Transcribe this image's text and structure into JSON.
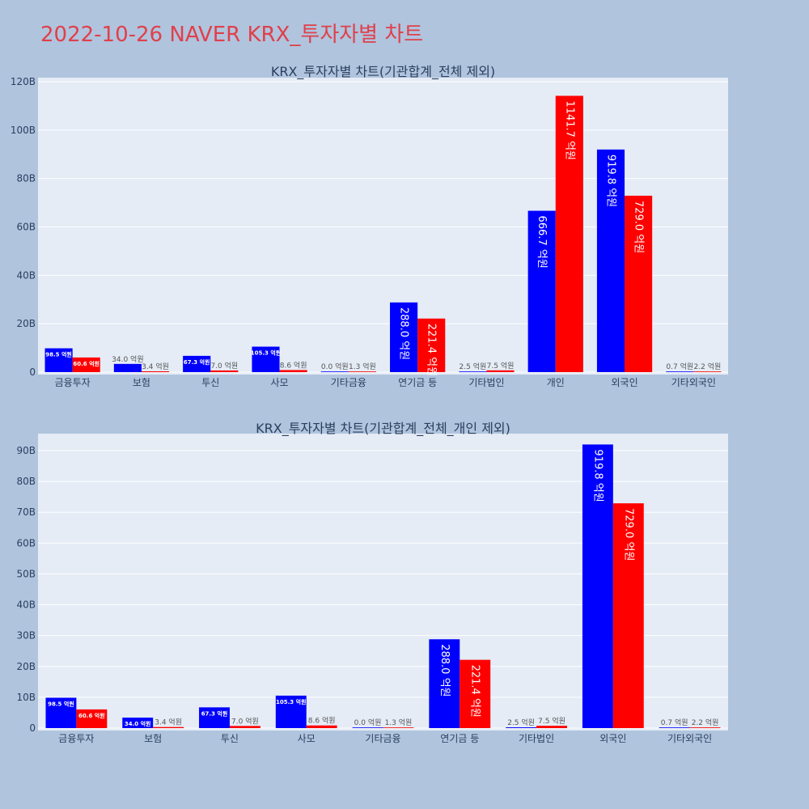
{
  "title": "2022-10-26 NAVER KRX_투자자별 차트",
  "colors": {
    "buy": "#0000ff",
    "sell": "#ff0000",
    "title": "#e0404a"
  },
  "chart_data": [
    {
      "type": "bar",
      "title": "KRX_투자자별 차트(기관합계_전체 제외)",
      "categories": [
        "금융투자",
        "보험",
        "투신",
        "사모",
        "기타금융",
        "연기금 등",
        "기타법인",
        "개인",
        "외국인",
        "기타외국인"
      ],
      "series": [
        {
          "values": [
            9.85,
            3.4,
            6.73,
            10.53,
            0.0,
            28.8,
            0.25,
            66.67,
            91.98,
            0.07
          ],
          "labels": [
            "98.5 억원",
            "34.0 억원",
            "67.3 억원",
            "105.3 억원",
            "0.0 억원",
            "288.0 억원",
            "2.5 억원",
            "666.7 억원",
            "919.8 억원",
            "0.7 억원"
          ]
        },
        {
          "values": [
            6.06,
            0.34,
            0.7,
            0.86,
            0.13,
            22.14,
            0.75,
            114.17,
            72.9,
            0.22
          ],
          "labels": [
            "60.6 억원",
            "3.4 억원",
            "7.0 억원",
            "8.6 억원",
            "1.3 억원",
            "221.4 억원",
            "7.5 억원",
            "1141.7 억원",
            "729.0 억원",
            "2.2 억원"
          ]
        }
      ],
      "ylim": [
        0,
        120
      ],
      "yticks": [
        0,
        20,
        40,
        60,
        80,
        100,
        120
      ],
      "ytick_labels": [
        "0",
        "20B",
        "40B",
        "60B",
        "80B",
        "100B",
        "120B"
      ],
      "grid": true
    },
    {
      "type": "bar",
      "title": "KRX_투자자별 차트(기관합계_전체_개인 제외)",
      "categories": [
        "금융투자",
        "보험",
        "투신",
        "사모",
        "기타금융",
        "연기금 등",
        "기타법인",
        "외국인",
        "기타외국인"
      ],
      "series": [
        {
          "values": [
            9.85,
            3.4,
            6.73,
            10.53,
            0.0,
            28.8,
            0.25,
            91.98,
            0.07
          ],
          "labels": [
            "98.5 억원",
            "34.0 억원",
            "67.3 억원",
            "105.3 억원",
            "0.0 억원",
            "288.0 억원",
            "2.5 억원",
            "919.8 억원",
            "0.7 억원"
          ]
        },
        {
          "values": [
            6.06,
            0.34,
            0.7,
            0.86,
            0.13,
            22.14,
            0.75,
            72.9,
            0.22
          ],
          "labels": [
            "60.6 억원",
            "3.4 억원",
            "7.0 억원",
            "8.6 억원",
            "1.3 억원",
            "221.4 억원",
            "7.5 억원",
            "729.0 억원",
            "2.2 억원"
          ]
        }
      ],
      "ylim": [
        0,
        95.5
      ],
      "yticks": [
        0,
        10,
        20,
        30,
        40,
        50,
        60,
        70,
        80,
        90
      ],
      "ytick_labels": [
        "0",
        "10B",
        "20B",
        "30B",
        "40B",
        "50B",
        "60B",
        "70B",
        "80B",
        "90B"
      ],
      "grid": true
    }
  ]
}
